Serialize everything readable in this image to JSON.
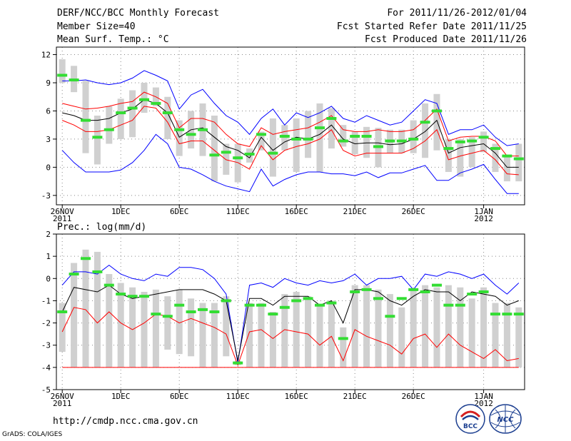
{
  "header": {
    "title": "DERF/NCC/BCC Monthly Forecast",
    "member_size": "Member Size=40",
    "variable": "Mean Surf. Temp.: °C",
    "forecast_period": "For 2011/11/26-2012/01/04",
    "start_date": "Fcst Started Refer Date 2011/11/25",
    "produced_date": "Fcst Produced Date 2011/11/26"
  },
  "footer": {
    "url": "http://cmdp.ncc.cma.gov.cn",
    "grads_credit": "GrADS: COLA/IGES",
    "logo_bcc": "BCC",
    "logo_ncc": "NCC"
  },
  "colors": {
    "ensemble_max_min": "#0000ff",
    "ensemble_mean": "#000000",
    "ensemble_spread": "#ff0000",
    "member_range_bar": "#d0d0d0",
    "observed_or_median": "#33dd33"
  },
  "chart_data": [
    {
      "type": "box",
      "panel": "temperature",
      "title": "Mean Surf. Temp.: °C",
      "xlabel": "",
      "ylabel": "Mean Surf. Temp.: °C",
      "x_ticks": [
        {
          "day": 1,
          "label": "26NOV",
          "sublabel": "2011"
        },
        {
          "day": 6,
          "label": "1DEC",
          "sublabel": ""
        },
        {
          "day": 11,
          "label": "6DEC",
          "sublabel": ""
        },
        {
          "day": 16,
          "label": "11DEC",
          "sublabel": ""
        },
        {
          "day": 21,
          "label": "16DEC",
          "sublabel": ""
        },
        {
          "day": 26,
          "label": "21DEC",
          "sublabel": ""
        },
        {
          "day": 31,
          "label": "26DEC",
          "sublabel": ""
        },
        {
          "day": 37,
          "label": "1JAN",
          "sublabel": "2012"
        }
      ],
      "ylim": [
        -4,
        12.8
      ],
      "y_ticks": [
        -3,
        0,
        3,
        6,
        9,
        12
      ],
      "xlim": [
        0.5,
        40.5
      ],
      "grid": true,
      "days": [
        1,
        2,
        3,
        4,
        5,
        6,
        7,
        8,
        9,
        10,
        11,
        12,
        13,
        14,
        15,
        16,
        17,
        18,
        19,
        20,
        21,
        22,
        23,
        24,
        25,
        26,
        27,
        28,
        29,
        30,
        31,
        32,
        33,
        34,
        35,
        36,
        37,
        38,
        39,
        40
      ],
      "series": [
        {
          "name": "max",
          "color": "#0000ff",
          "values": [
            9.2,
            9.2,
            9.3,
            9.0,
            8.8,
            9.0,
            9.5,
            10.3,
            9.8,
            9.2,
            6.2,
            7.7,
            8.3,
            6.8,
            5.5,
            4.8,
            3.5,
            5.2,
            6.2,
            4.5,
            5.8,
            5.3,
            5.8,
            6.5,
            5.2,
            4.8,
            5.5,
            5.0,
            4.5,
            4.8,
            6.0,
            7.2,
            6.8,
            3.5,
            4.0,
            4.0,
            4.5,
            3.2,
            2.3,
            2.5
          ]
        },
        {
          "name": "spread_upper",
          "color": "#ff0000",
          "values": [
            6.8,
            6.5,
            6.2,
            6.3,
            6.5,
            6.8,
            7.0,
            8.0,
            7.5,
            6.8,
            4.2,
            5.2,
            5.2,
            4.8,
            3.5,
            2.5,
            2.2,
            4.2,
            3.5,
            3.8,
            4.0,
            4.2,
            4.8,
            5.5,
            4.0,
            3.8,
            3.8,
            4.0,
            3.8,
            3.8,
            4.0,
            5.0,
            6.2,
            2.8,
            3.2,
            3.3,
            3.3,
            2.8,
            1.2,
            1.2
          ]
        },
        {
          "name": "mean",
          "color": "#000000",
          "values": [
            5.8,
            5.5,
            5.0,
            5.0,
            5.2,
            5.8,
            6.2,
            7.2,
            6.8,
            5.8,
            3.2,
            4.0,
            4.2,
            3.2,
            2.2,
            1.8,
            1.0,
            3.2,
            1.8,
            2.7,
            3.2,
            3.0,
            3.5,
            4.5,
            3.0,
            2.5,
            2.6,
            2.6,
            2.4,
            2.5,
            3.0,
            3.8,
            5.0,
            1.5,
            2.1,
            2.3,
            2.5,
            1.5,
            0.0,
            0.0
          ]
        },
        {
          "name": "spread_lower",
          "color": "#ff0000",
          "values": [
            5.0,
            4.5,
            3.8,
            3.8,
            4.0,
            4.5,
            5.0,
            6.5,
            6.3,
            4.8,
            2.5,
            2.8,
            2.8,
            1.8,
            0.8,
            0.5,
            -0.2,
            2.3,
            0.8,
            1.8,
            2.2,
            2.5,
            3.0,
            4.0,
            1.8,
            1.2,
            1.5,
            1.5,
            1.5,
            1.5,
            2.0,
            2.8,
            4.0,
            0.8,
            1.2,
            1.5,
            1.8,
            0.8,
            -0.7,
            -0.8
          ]
        },
        {
          "name": "min",
          "color": "#0000ff",
          "values": [
            1.8,
            0.5,
            -0.5,
            -0.5,
            -0.5,
            -0.3,
            0.5,
            1.8,
            3.5,
            2.5,
            0.0,
            -0.2,
            -0.8,
            -1.5,
            -2.0,
            -2.3,
            -2.6,
            -0.2,
            -2.0,
            -1.3,
            -0.8,
            -0.5,
            -0.5,
            -0.7,
            -0.7,
            -0.9,
            -0.5,
            -1.1,
            -0.6,
            -0.6,
            -0.2,
            0.2,
            -1.4,
            -1.4,
            -0.6,
            -0.2,
            0.3,
            -1.3,
            -2.8,
            -2.8
          ]
        }
      ],
      "bars": {
        "name": "member_range",
        "color": "#d0d0d0",
        "low": [
          9.0,
          8.0,
          1.5,
          0.3,
          2.5,
          3.0,
          3.2,
          5.8,
          6.5,
          3.0,
          1.2,
          2.0,
          1.2,
          -1.5,
          -0.8,
          -1.6,
          0.5,
          1.8,
          -1.0,
          1.8,
          -0.5,
          1.0,
          -0.5,
          2.0,
          2.2,
          1.4,
          1.0,
          0.0,
          1.5,
          1.5,
          1.5,
          1.0,
          1.8,
          -0.5,
          -1.0,
          0.0,
          1.6,
          -0.5,
          -1.5,
          -1.5
        ],
        "high": [
          11.5,
          10.8,
          9.2,
          5.5,
          6.5,
          7.3,
          8.2,
          9.0,
          8.5,
          7.5,
          5.0,
          6.0,
          6.8,
          5.5,
          2.5,
          2.5,
          2.0,
          3.8,
          5.2,
          4.5,
          5.2,
          6.0,
          6.8,
          6.3,
          4.5,
          3.8,
          4.3,
          4.2,
          4.0,
          4.0,
          5.0,
          6.8,
          7.8,
          3.0,
          3.0,
          3.2,
          3.8,
          2.5,
          1.2,
          2.5
        ]
      },
      "markers": {
        "name": "observed",
        "color": "#33dd33",
        "values": [
          9.8,
          9.3,
          5.0,
          3.2,
          4.0,
          5.8,
          6.3,
          7.2,
          6.8,
          5.8,
          4.0,
          3.5,
          4.0,
          1.3,
          1.6,
          1.0,
          1.4,
          3.5,
          1.5,
          3.3,
          3.0,
          3.0,
          4.2,
          5.2,
          2.8,
          3.3,
          3.3,
          2.2,
          2.8,
          2.8,
          3.0,
          4.8,
          6.0,
          2.0,
          2.7,
          2.8,
          3.2,
          2.0,
          1.2,
          0.9
        ]
      }
    },
    {
      "type": "box",
      "panel": "precipitation",
      "title": "Prec.: log(mm/d)",
      "xlabel": "",
      "ylabel": "Prec.: log(mm/d)",
      "x_ticks": [
        {
          "day": 1,
          "label": "26NOV",
          "sublabel": "2011"
        },
        {
          "day": 6,
          "label": "1DEC",
          "sublabel": ""
        },
        {
          "day": 11,
          "label": "6DEC",
          "sublabel": ""
        },
        {
          "day": 16,
          "label": "11DEC",
          "sublabel": ""
        },
        {
          "day": 21,
          "label": "16DEC",
          "sublabel": ""
        },
        {
          "day": 26,
          "label": "21DEC",
          "sublabel": ""
        },
        {
          "day": 31,
          "label": "26DEC",
          "sublabel": ""
        },
        {
          "day": 37,
          "label": "1JAN",
          "sublabel": "2012"
        }
      ],
      "ylim": [
        -5,
        2
      ],
      "y_ticks": [
        -5,
        -4,
        -3,
        -2,
        -1,
        0,
        1,
        2
      ],
      "xlim": [
        0.5,
        40.5
      ],
      "grid": true,
      "days": [
        1,
        2,
        3,
        4,
        5,
        6,
        7,
        8,
        9,
        10,
        11,
        12,
        13,
        14,
        15,
        16,
        17,
        18,
        19,
        20,
        21,
        22,
        23,
        24,
        25,
        26,
        27,
        28,
        29,
        30,
        31,
        32,
        33,
        34,
        35,
        36,
        37,
        38,
        39,
        40
      ],
      "series": [
        {
          "name": "max",
          "color": "#0000ff",
          "values": [
            -0.3,
            0.3,
            0.3,
            0.2,
            0.6,
            0.2,
            0.0,
            -0.1,
            0.2,
            0.1,
            0.5,
            0.5,
            0.4,
            0.0,
            -0.7,
            -3.8,
            -0.3,
            -0.2,
            -0.4,
            0.0,
            -0.2,
            -0.3,
            -0.1,
            -0.2,
            -0.1,
            0.2,
            -0.3,
            0.0,
            0.0,
            0.1,
            -0.5,
            0.2,
            0.1,
            0.3,
            0.2,
            0.0,
            0.2,
            -0.3,
            -0.7,
            -0.2
          ]
        },
        {
          "name": "mean",
          "color": "#000000",
          "values": [
            -1.5,
            -0.4,
            -0.5,
            -0.6,
            -0.3,
            -0.7,
            -0.9,
            -0.8,
            -0.7,
            -0.6,
            -0.5,
            -0.5,
            -0.5,
            -0.7,
            -1.0,
            -3.7,
            -0.9,
            -0.9,
            -1.2,
            -0.8,
            -0.8,
            -0.8,
            -1.2,
            -1.0,
            -2.0,
            -0.5,
            -0.5,
            -0.6,
            -1.0,
            -1.2,
            -0.8,
            -0.5,
            -0.6,
            -0.6,
            -1.0,
            -0.6,
            -0.7,
            -0.8,
            -1.2,
            -1.0
          ]
        },
        {
          "name": "p10",
          "color": "#ff0000",
          "values": [
            -4.0,
            -4.0,
            -4.0,
            -4.0,
            -4.0,
            -4.0,
            -4.0,
            -4.0,
            -4.0,
            -4.0,
            -4.0,
            -4.0,
            -4.0,
            -4.0,
            -4.0,
            -4.0,
            -4.0,
            -4.0,
            -4.0,
            -4.0,
            -4.0,
            -4.0,
            -4.0,
            -4.0,
            -4.0,
            -4.0,
            -4.0,
            -4.0,
            -4.0,
            -4.0,
            -4.0,
            -4.0,
            -4.0,
            -4.0,
            -4.0,
            -4.0,
            -4.0,
            -4.0,
            -4.0,
            -4.0
          ]
        },
        {
          "name": "p_lower",
          "color": "#ff0000",
          "values": [
            -2.4,
            -1.3,
            -1.4,
            -2.0,
            -1.5,
            -2.0,
            -2.3,
            -2.0,
            -1.6,
            -1.7,
            -2.0,
            -1.8,
            -2.0,
            -2.2,
            -2.5,
            -3.9,
            -2.4,
            -2.3,
            -2.7,
            -2.3,
            -2.4,
            -2.5,
            -3.0,
            -2.6,
            -3.7,
            -2.3,
            -2.6,
            -2.8,
            -3.0,
            -3.4,
            -2.7,
            -2.5,
            -3.1,
            -2.5,
            -3.0,
            -3.3,
            -3.6,
            -3.2,
            -3.7,
            -3.6
          ]
        }
      ],
      "bars": {
        "name": "member_range",
        "color": "#d0d0d0",
        "low": [
          -3.3,
          -4.0,
          -4.0,
          -4.0,
          -4.0,
          -4.0,
          -4.0,
          -4.0,
          -4.0,
          -3.2,
          -3.4,
          -3.5,
          -4.0,
          -4.0,
          -3.5,
          -3.9,
          -4.0,
          -4.0,
          -4.0,
          -4.0,
          -4.0,
          -4.0,
          -4.0,
          -4.0,
          -4.0,
          -4.0,
          -4.0,
          -4.0,
          -4.0,
          -4.0,
          -4.0,
          -4.0,
          -4.0,
          -4.0,
          -4.0,
          -4.0,
          -4.0,
          -4.0,
          -4.0,
          -4.0
        ],
        "high": [
          -1.1,
          0.7,
          1.3,
          1.2,
          0.2,
          -0.2,
          -0.4,
          -0.6,
          -0.5,
          -0.8,
          -0.5,
          -0.9,
          -1.1,
          -1.1,
          -0.8,
          -3.7,
          -1.1,
          -1.1,
          -1.5,
          -0.7,
          -0.6,
          -0.8,
          -1.2,
          -1.0,
          -2.2,
          -0.3,
          -0.3,
          -0.5,
          -0.7,
          -1.3,
          -0.5,
          -0.3,
          -0.4,
          -0.3,
          -0.4,
          -0.9,
          -0.4,
          -1.1,
          -1.1,
          -1.3
        ]
      },
      "markers": {
        "name": "observed",
        "color": "#33dd33",
        "values": [
          -1.5,
          0.2,
          0.9,
          0.3,
          -0.3,
          -0.7,
          -0.8,
          -0.8,
          -1.6,
          -1.7,
          -1.2,
          -1.5,
          -1.4,
          -1.5,
          -1.0,
          -3.8,
          -1.2,
          -1.2,
          -1.6,
          -1.3,
          -1.0,
          -0.9,
          -1.2,
          -1.1,
          -2.7,
          -0.6,
          -0.5,
          -0.9,
          -1.7,
          -0.9,
          -0.5,
          -0.6,
          -0.3,
          -1.2,
          -1.2,
          -0.7,
          -0.6,
          -1.6,
          -1.6,
          -1.6
        ]
      }
    }
  ]
}
